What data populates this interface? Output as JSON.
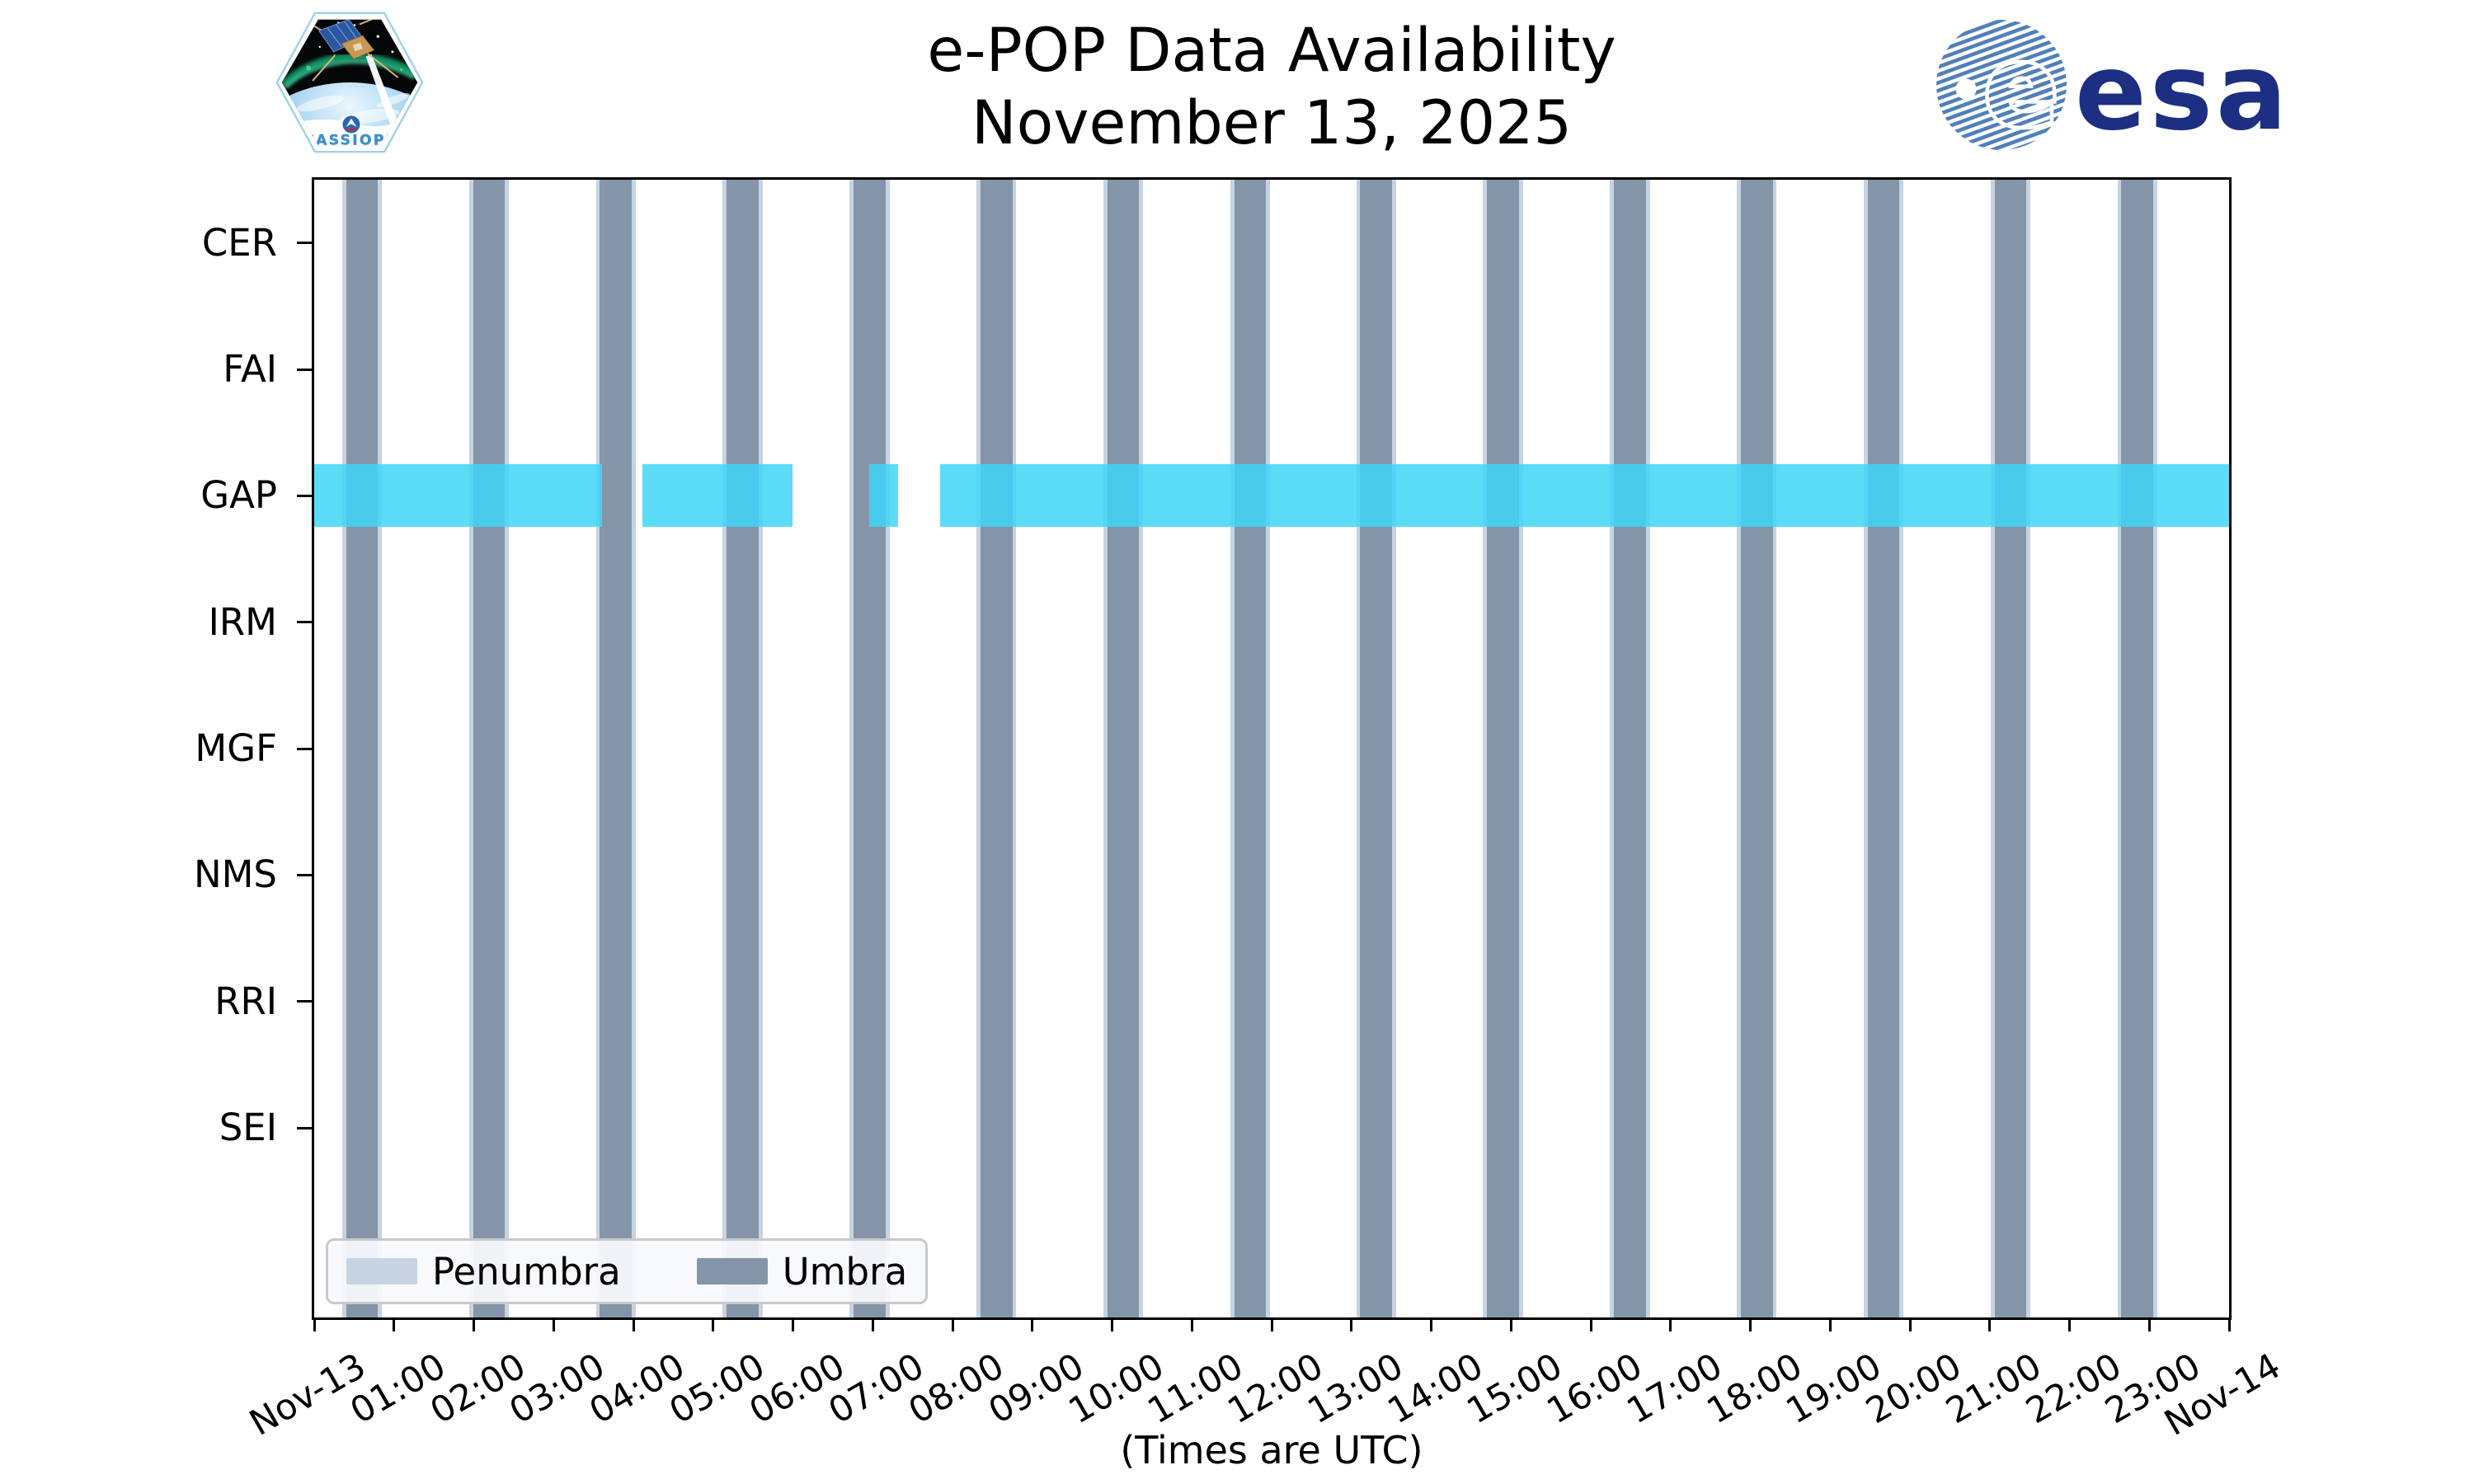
{
  "title": {
    "line1": "e-POP Data Availability",
    "line2": "November 13, 2025"
  },
  "footer_note": "(Times are UTC)",
  "logos": {
    "cassiope_label": "CASSIOPE",
    "esa_label": "esa"
  },
  "legend": {
    "items": [
      {
        "label": "Penumbra",
        "color": "#C6D3E2"
      },
      {
        "label": "Umbra",
        "color": "#8495A8"
      }
    ]
  },
  "colors": {
    "umbra": "#8495A8",
    "penumbra": "#C6D3E2",
    "availability": "rgba(62,214,248,0.85)",
    "axis": "#000000",
    "legend_bg": "rgba(248,249,252,0.93)",
    "legend_border": "#C9C9C9",
    "esa_navy": "#1D2F82",
    "esa_stripe": "#4F80BA",
    "cassiope_blue": "#3E92D4"
  },
  "y_axis": {
    "instruments": [
      "CER",
      "FAI",
      "GAP",
      "IRM",
      "MGF",
      "NMS",
      "RRI",
      "SEI"
    ]
  },
  "x_axis": {
    "tick_labels": [
      "Nov-13",
      "01:00",
      "02:00",
      "03:00",
      "04:00",
      "05:00",
      "06:00",
      "07:00",
      "08:00",
      "09:00",
      "10:00",
      "11:00",
      "12:00",
      "13:00",
      "14:00",
      "15:00",
      "16:00",
      "17:00",
      "18:00",
      "19:00",
      "20:00",
      "21:00",
      "22:00",
      "23:00",
      "Nov-14"
    ]
  },
  "chart_data": {
    "type": "timeline",
    "title": "e-POP Data Availability",
    "subtitle": "November 13, 2025",
    "x_unit": "hours UTC",
    "x_range_hours": [
      0,
      24
    ],
    "rows": [
      "CER",
      "FAI",
      "GAP",
      "IRM",
      "MGF",
      "NMS",
      "RRI",
      "SEI"
    ],
    "row_with_data": "GAP",
    "umbra_intervals_hours": [
      [
        0.4,
        0.8
      ],
      [
        1.99,
        2.39
      ],
      [
        3.58,
        3.98
      ],
      [
        5.17,
        5.57
      ],
      [
        6.76,
        7.16
      ],
      [
        8.35,
        8.75
      ],
      [
        9.94,
        10.34
      ],
      [
        11.53,
        11.93
      ],
      [
        13.11,
        13.51
      ],
      [
        14.7,
        15.1
      ],
      [
        16.29,
        16.69
      ],
      [
        17.88,
        18.28
      ],
      [
        19.47,
        19.87
      ],
      [
        21.06,
        21.46
      ],
      [
        22.65,
        23.05
      ]
    ],
    "penumbra_pad_hours": 0.05,
    "gap_data_segments_hours": [
      [
        0.0,
        3.61
      ],
      [
        4.11,
        6.0
      ],
      [
        6.96,
        7.32
      ],
      [
        7.84,
        24.0
      ]
    ],
    "legend_entries": [
      "Penumbra",
      "Umbra"
    ]
  }
}
